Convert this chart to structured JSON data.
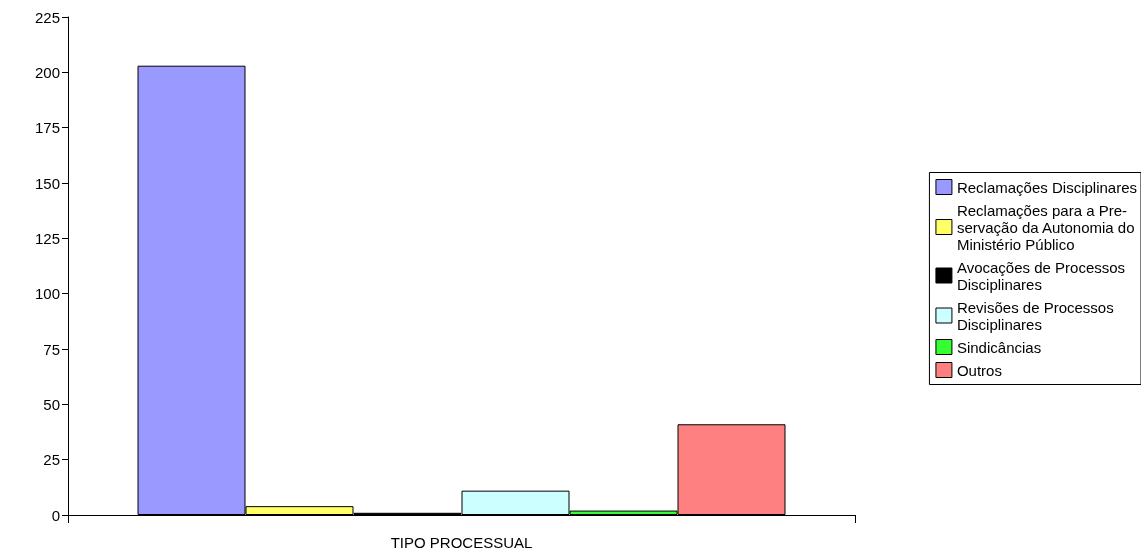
{
  "chart_data": {
    "type": "bar",
    "categories": [
      "TIPO PROCESSUAL"
    ],
    "series": [
      {
        "name": "Reclamações Disciplinares",
        "color": "#9999ff",
        "values": [
          203
        ]
      },
      {
        "name": "Reclamações para a Pre-\nservação da Autonomia do\nMinistério Público",
        "color": "#ffff66",
        "values": [
          4
        ]
      },
      {
        "name": "Avocações de Processos\nDisciplinares",
        "color": "#000000",
        "values": [
          1
        ]
      },
      {
        "name": "Revisões de Processos\nDisciplinares",
        "color": "#ccffff",
        "values": [
          11
        ]
      },
      {
        "name": "Sindicâncias",
        "color": "#33ff33",
        "values": [
          2
        ]
      },
      {
        "name": "Outros",
        "color": "#ff8080",
        "values": [
          41
        ]
      }
    ],
    "ylim": [
      0,
      225
    ],
    "yticks": [
      0,
      25,
      50,
      75,
      100,
      125,
      150,
      175,
      200,
      225
    ],
    "grid": false,
    "legend": "right"
  }
}
